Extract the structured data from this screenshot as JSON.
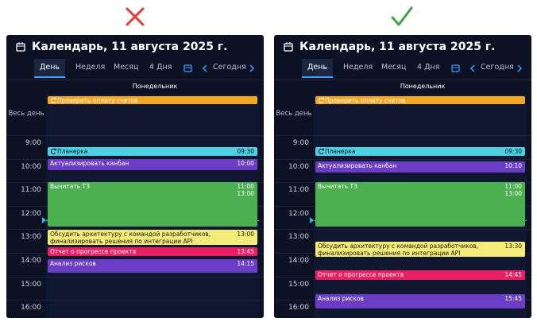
{
  "panels": [
    {
      "title": "Календарь, 11 августа 2025 г.",
      "tabs": [
        "День",
        "Неделя",
        "Месяц",
        "4 Дня"
      ],
      "today": "Сегодня",
      "day_name": "Понедельник",
      "all_day_label": "Весь день",
      "hours": [
        "9:00",
        "10:00",
        "11:00",
        "12:00",
        "13:00",
        "14:00",
        "15:00",
        "16:00"
      ],
      "events": [
        {
          "title": "Проверить оплату счетов",
          "times": []
        },
        {
          "title": "Планерка",
          "times": [
            "09:30"
          ]
        },
        {
          "title": "Актуализировать канбан",
          "times": [
            "10:00"
          ]
        },
        {
          "title": "Вычитать ТЗ",
          "times": [
            "11:00",
            "13:00"
          ]
        },
        {
          "title": "Обсудить архитектуру с командой разработчиков, финализировать решения по интеграции API",
          "times": [
            "13:00"
          ]
        },
        {
          "title": "Отчет о прогрессе проекта",
          "times": [
            "13:45"
          ]
        },
        {
          "title": "Анализ рисков",
          "times": [
            "14:15"
          ]
        }
      ]
    },
    {
      "title": "Календарь, 11 августа 2025 г.",
      "tabs": [
        "День",
        "Неделя",
        "Месяц",
        "4 Дня"
      ],
      "today": "Сегодня",
      "day_name": "Понедельник",
      "all_day_label": "Весь день",
      "hours": [
        "9:00",
        "10:00",
        "11:00",
        "12:00",
        "13:00",
        "14:00",
        "15:00",
        "16:00"
      ],
      "events": [
        {
          "title": "Проверить оплату счетов",
          "times": []
        },
        {
          "title": "Планерка",
          "times": [
            "09:30"
          ]
        },
        {
          "title": "Актуализировать канбан",
          "times": [
            "10:10"
          ]
        },
        {
          "title": "Вычитать ТЗ",
          "times": [
            "11:00",
            "13:00"
          ]
        },
        {
          "title": "Обсудить архитектуру с командой разработчиков, финализировать решения по интеграции API",
          "times": [
            "13:30"
          ]
        },
        {
          "title": "Отчет о прогрессе проекта",
          "times": [
            "14:45"
          ]
        },
        {
          "title": "Анализ рисков",
          "times": [
            "15:45"
          ]
        }
      ]
    }
  ]
}
